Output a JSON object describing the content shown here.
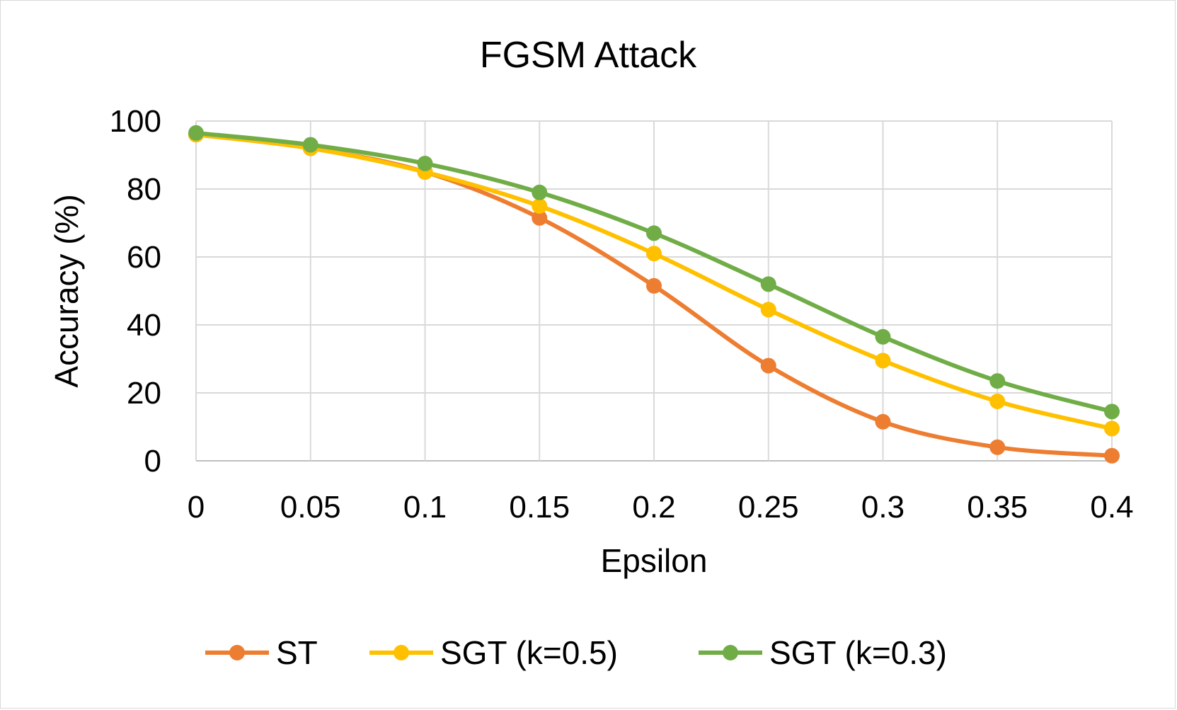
{
  "chart_data": {
    "type": "line",
    "title": "FGSM Attack",
    "xlabel": "Epsilon",
    "ylabel": "Accuracy (%)",
    "categories": [
      "0",
      "0.05",
      "0.1",
      "0.15",
      "0.2",
      "0.25",
      "0.3",
      "0.35",
      "0.4"
    ],
    "ylim": [
      0,
      100
    ],
    "yticks": [
      "0",
      "20",
      "40",
      "60",
      "80",
      "100"
    ],
    "grid": true,
    "legend_position": "bottom",
    "series": [
      {
        "name": "ST",
        "color": "#ED7D31",
        "values": [
          96,
          92,
          85,
          71.5,
          51.5,
          28,
          11.5,
          4,
          1.5
        ]
      },
      {
        "name": "SGT (k=0.5)",
        "color": "#FFC000",
        "values": [
          96,
          92,
          85,
          75,
          61,
          44.5,
          29.5,
          17.5,
          9.5
        ]
      },
      {
        "name": "SGT (k=0.3)",
        "color": "#70AD47",
        "values": [
          96.5,
          93,
          87.5,
          79,
          67,
          52,
          36.5,
          23.5,
          14.5
        ]
      }
    ]
  }
}
